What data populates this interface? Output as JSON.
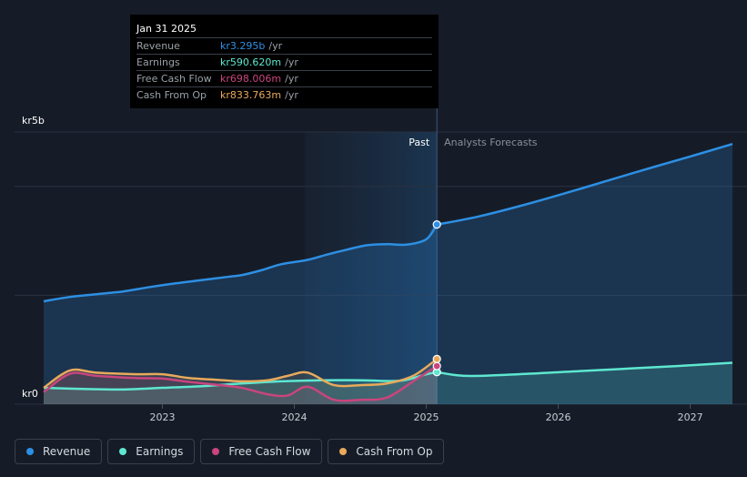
{
  "chart_data": {
    "type": "line",
    "y_unit_labels": {
      "top": "kr5b",
      "bottom": "kr0"
    },
    "ylim": [
      0,
      5
    ],
    "xlim": [
      2022.1,
      2027.32
    ],
    "x_ticks": [
      2023,
      2024,
      2025,
      2026,
      2027
    ],
    "x_tick_labels": [
      "2023",
      "2024",
      "2025",
      "2026",
      "2027"
    ],
    "gridlines_y": [
      0,
      2,
      4,
      5
    ],
    "divider_x": 2025.08,
    "highlight_start_x": 2024.08,
    "past_label": "Past",
    "forecast_label": "Analysts Forecasts",
    "series": [
      {
        "name": "Revenue",
        "color": "#2d8fe3",
        "past": [
          [
            2022.1,
            1.89
          ],
          [
            2022.3,
            1.97
          ],
          [
            2022.5,
            2.02
          ],
          [
            2022.7,
            2.07
          ],
          [
            2022.9,
            2.15
          ],
          [
            2023.1,
            2.22
          ],
          [
            2023.3,
            2.28
          ],
          [
            2023.5,
            2.34
          ],
          [
            2023.6,
            2.37
          ],
          [
            2023.75,
            2.46
          ],
          [
            2023.9,
            2.57
          ],
          [
            2024.1,
            2.65
          ],
          [
            2024.25,
            2.75
          ],
          [
            2024.4,
            2.84
          ],
          [
            2024.55,
            2.92
          ],
          [
            2024.7,
            2.94
          ],
          [
            2024.85,
            2.93
          ],
          [
            2025.0,
            3.03
          ],
          [
            2025.08,
            3.3
          ]
        ],
        "forecast": [
          [
            2025.08,
            3.3
          ],
          [
            2025.4,
            3.45
          ],
          [
            2025.8,
            3.7
          ],
          [
            2026.2,
            3.98
          ],
          [
            2026.6,
            4.27
          ],
          [
            2027.0,
            4.55
          ],
          [
            2027.32,
            4.78
          ]
        ]
      },
      {
        "name": "Earnings",
        "color": "#5ee7d0",
        "past": [
          [
            2022.1,
            0.3
          ],
          [
            2022.4,
            0.28
          ],
          [
            2022.7,
            0.27
          ],
          [
            2023.0,
            0.3
          ],
          [
            2023.3,
            0.33
          ],
          [
            2023.6,
            0.38
          ],
          [
            2023.9,
            0.42
          ],
          [
            2024.2,
            0.44
          ],
          [
            2024.5,
            0.44
          ],
          [
            2024.8,
            0.43
          ],
          [
            2025.0,
            0.55
          ],
          [
            2025.08,
            0.59
          ]
        ],
        "forecast": [
          [
            2025.08,
            0.59
          ],
          [
            2025.3,
            0.52
          ],
          [
            2025.7,
            0.55
          ],
          [
            2026.1,
            0.6
          ],
          [
            2026.5,
            0.65
          ],
          [
            2026.9,
            0.7
          ],
          [
            2027.32,
            0.76
          ]
        ]
      },
      {
        "name": "Free Cash Flow",
        "color": "#c9457d",
        "past": [
          [
            2022.1,
            0.22
          ],
          [
            2022.3,
            0.56
          ],
          [
            2022.5,
            0.52
          ],
          [
            2022.8,
            0.48
          ],
          [
            2023.0,
            0.47
          ],
          [
            2023.2,
            0.41
          ],
          [
            2023.4,
            0.36
          ],
          [
            2023.6,
            0.3
          ],
          [
            2023.8,
            0.18
          ],
          [
            2023.95,
            0.16
          ],
          [
            2024.1,
            0.32
          ],
          [
            2024.3,
            0.08
          ],
          [
            2024.5,
            0.08
          ],
          [
            2024.7,
            0.12
          ],
          [
            2024.9,
            0.42
          ],
          [
            2025.08,
            0.7
          ]
        ],
        "forecast": []
      },
      {
        "name": "Cash From Op",
        "color": "#e8a95b",
        "past": [
          [
            2022.1,
            0.3
          ],
          [
            2022.3,
            0.62
          ],
          [
            2022.5,
            0.58
          ],
          [
            2022.8,
            0.55
          ],
          [
            2023.0,
            0.55
          ],
          [
            2023.2,
            0.48
          ],
          [
            2023.4,
            0.45
          ],
          [
            2023.6,
            0.42
          ],
          [
            2023.8,
            0.44
          ],
          [
            2023.95,
            0.52
          ],
          [
            2024.1,
            0.58
          ],
          [
            2024.3,
            0.35
          ],
          [
            2024.5,
            0.35
          ],
          [
            2024.7,
            0.38
          ],
          [
            2024.9,
            0.52
          ],
          [
            2025.08,
            0.83
          ]
        ],
        "forecast": []
      }
    ],
    "tooltip": {
      "date": "Jan 31 2025",
      "rows": [
        {
          "label": "Revenue",
          "value": "kr3.295b",
          "unit": "/yr",
          "color": "#2d8fe3"
        },
        {
          "label": "Earnings",
          "value": "kr590.620m",
          "unit": "/yr",
          "color": "#5ee7d0"
        },
        {
          "label": "Free Cash Flow",
          "value": "kr698.006m",
          "unit": "/yr",
          "color": "#c9457d"
        },
        {
          "label": "Cash From Op",
          "value": "kr833.763m",
          "unit": "/yr",
          "color": "#e8a95b"
        }
      ]
    }
  },
  "legend": [
    {
      "label": "Revenue",
      "color": "#2d8fe3"
    },
    {
      "label": "Earnings",
      "color": "#5ee7d0"
    },
    {
      "label": "Free Cash Flow",
      "color": "#c9457d"
    },
    {
      "label": "Cash From Op",
      "color": "#e8a95b"
    }
  ]
}
